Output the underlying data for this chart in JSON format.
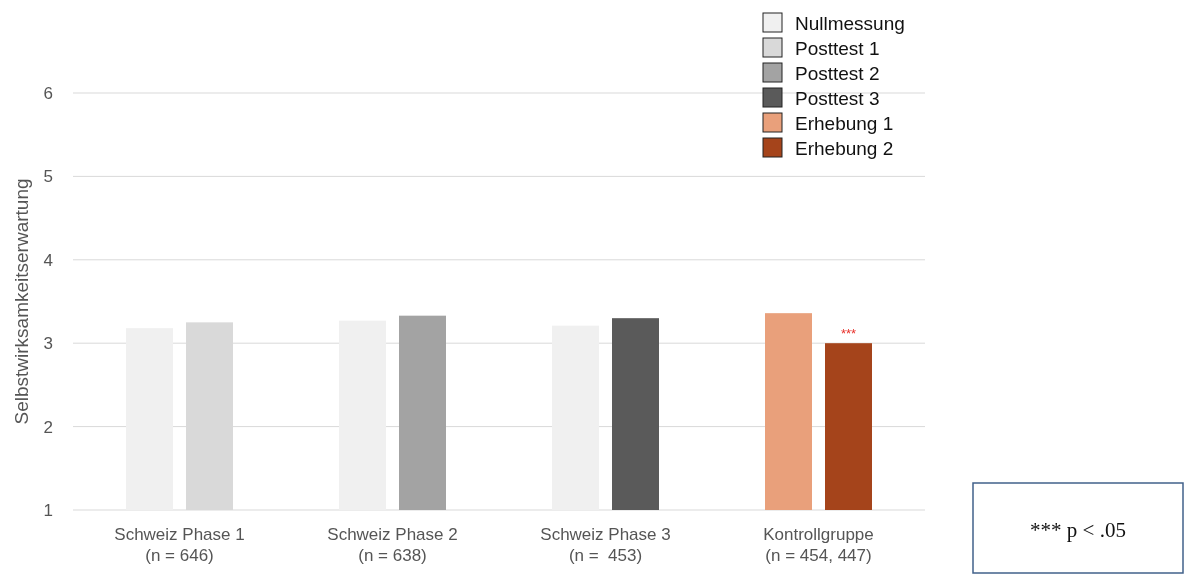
{
  "chart_data": {
    "type": "bar",
    "ylabel": "Selbstwirksamkeitserwartung",
    "categories": [
      "Schweiz Phase 1\n(n = 646)",
      "Schweiz Phase 2\n(n = 638)",
      "Schweiz Phase 3\n(n =  453)",
      "Kontrollgruppe\n(n = 454, 447)"
    ],
    "series": [
      {
        "name": "Nullmessung",
        "color": "#f0f0f0",
        "values": [
          3.18,
          3.27,
          3.21,
          null
        ]
      },
      {
        "name": "Posttest 1",
        "color": "#d9d9d9",
        "values": [
          3.25,
          null,
          null,
          null
        ]
      },
      {
        "name": "Posttest 2",
        "color": "#a3a3a3",
        "values": [
          null,
          3.33,
          null,
          null
        ]
      },
      {
        "name": "Posttest 3",
        "color": "#5a5a5a",
        "values": [
          null,
          null,
          3.3,
          null
        ]
      },
      {
        "name": "Erhebung 1",
        "color": "#e9a07b",
        "values": [
          null,
          null,
          null,
          3.36
        ]
      },
      {
        "name": "Erhebung 2",
        "color": "#a5441b",
        "values": [
          null,
          null,
          null,
          3.0
        ]
      }
    ],
    "ylim": [
      1,
      6
    ],
    "yticks": [
      1,
      2,
      3,
      4,
      5,
      6
    ],
    "grid": "y",
    "legend": "top right",
    "annotations": [
      "***",
      "*** p < .05"
    ]
  }
}
